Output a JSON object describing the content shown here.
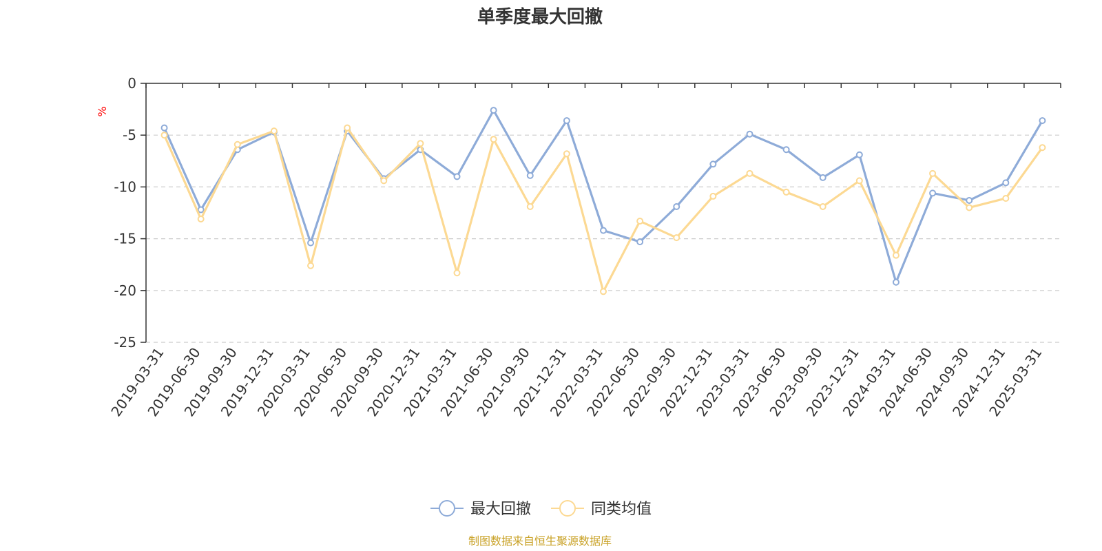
{
  "chart_data": {
    "type": "line",
    "title": "单季度最大回撤",
    "unit_label": "%",
    "categories": [
      "2019-03-31",
      "2019-06-30",
      "2019-09-30",
      "2019-12-31",
      "2020-03-31",
      "2020-06-30",
      "2020-09-30",
      "2020-12-31",
      "2021-03-31",
      "2021-06-30",
      "2021-09-30",
      "2021-12-31",
      "2022-03-31",
      "2022-06-30",
      "2022-09-30",
      "2022-12-31",
      "2023-03-31",
      "2023-06-30",
      "2023-09-30",
      "2023-12-31",
      "2024-03-31",
      "2024-06-30",
      "2024-09-30",
      "2024-12-31",
      "2025-03-31"
    ],
    "ylim": [
      -25,
      0
    ],
    "yticks": [
      0,
      -5,
      -10,
      -15,
      -20,
      -25
    ],
    "grid": true,
    "legend_position": "bottom",
    "series": [
      {
        "name": "最大回撤",
        "color": "#8eabd8",
        "values": [
          -4.3,
          -12.2,
          -6.4,
          -4.7,
          -15.4,
          -4.6,
          -9.2,
          -6.4,
          -9.0,
          -2.6,
          -8.9,
          -3.6,
          -14.2,
          -15.3,
          -11.9,
          -7.8,
          -4.9,
          -6.4,
          -9.1,
          -6.9,
          -19.2,
          -10.6,
          -11.3,
          -9.6,
          -3.6
        ]
      },
      {
        "name": "同类均值",
        "color": "#fcd993",
        "values": [
          -5.0,
          -13.1,
          -5.9,
          -4.6,
          -17.6,
          -4.3,
          -9.4,
          -5.8,
          -18.3,
          -5.4,
          -11.9,
          -6.8,
          -20.1,
          -13.3,
          -14.9,
          -10.9,
          -8.7,
          -10.5,
          -11.9,
          -9.4,
          -16.6,
          -8.7,
          -12.0,
          -11.1,
          -6.2
        ]
      }
    ],
    "source": "制图数据来自恒生聚源数据库"
  }
}
